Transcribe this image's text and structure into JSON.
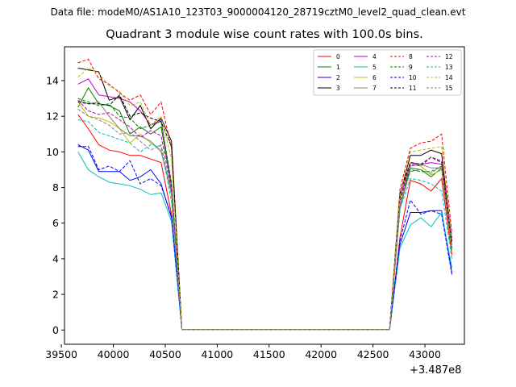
{
  "figure": {
    "suptitle": "Data file: modeM0/AS1A10_123T03_9000004120_28719cztM0_level2_quad_clean.evt"
  },
  "chart_data": {
    "type": "line",
    "title": "Quadrant 3 module wise count rates with 100.0s bins.",
    "xlabel": "",
    "ylabel": "",
    "x_offset_label": "+3.487e8",
    "xlim": [
      39530,
      43380
    ],
    "ylim": [
      -0.8,
      15.9
    ],
    "xticks": [
      39500,
      40000,
      40500,
      41000,
      41500,
      42000,
      42500,
      43000
    ],
    "yticks": [
      0,
      2,
      4,
      6,
      8,
      10,
      12,
      14
    ],
    "grid": false,
    "legend_position": "top-right",
    "legend_columns": 4,
    "x": [
      39660,
      39760,
      39860,
      39960,
      40060,
      40160,
      40260,
      40360,
      40460,
      40560,
      40660,
      40760,
      40860,
      40960,
      41060,
      41160,
      41260,
      41360,
      41460,
      41560,
      41660,
      41760,
      41860,
      41960,
      42060,
      42160,
      42260,
      42360,
      42460,
      42560,
      42660,
      42760,
      42860,
      42960,
      43060,
      43160,
      43260
    ],
    "series": [
      {
        "name": "0",
        "color": "#ff0000",
        "dash": "solid",
        "values": [
          12.1,
          11.3,
          10.4,
          10.1,
          10.0,
          9.8,
          9.8,
          9.6,
          9.4,
          6.5,
          0.02,
          0.02,
          0.02,
          0.02,
          0.02,
          0.02,
          0.02,
          0.02,
          0.02,
          0.02,
          0.02,
          0.02,
          0.02,
          0.02,
          0.02,
          0.02,
          0.02,
          0.02,
          0.02,
          0.02,
          0.02,
          5.2,
          8.4,
          8.2,
          7.8,
          8.5,
          4.2
        ]
      },
      {
        "name": "1",
        "color": "#008000",
        "dash": "solid",
        "values": [
          12.5,
          13.6,
          12.7,
          12.6,
          12.3,
          11.0,
          11.4,
          11.0,
          11.4,
          8.0,
          0.02,
          0.02,
          0.02,
          0.02,
          0.02,
          0.02,
          0.02,
          0.02,
          0.02,
          0.02,
          0.02,
          0.02,
          0.02,
          0.02,
          0.02,
          0.02,
          0.02,
          0.02,
          0.02,
          0.02,
          0.02,
          6.8,
          9.1,
          9.0,
          8.6,
          9.1,
          4.5
        ]
      },
      {
        "name": "2",
        "color": "#0000ff",
        "dash": "solid",
        "values": [
          10.4,
          10.1,
          8.9,
          8.9,
          8.9,
          8.4,
          8.6,
          9.0,
          8.2,
          6.3,
          0.02,
          0.02,
          0.02,
          0.02,
          0.02,
          0.02,
          0.02,
          0.02,
          0.02,
          0.02,
          0.02,
          0.02,
          0.02,
          0.02,
          0.02,
          0.02,
          0.02,
          0.02,
          0.02,
          0.02,
          0.02,
          4.8,
          6.6,
          6.6,
          6.7,
          6.7,
          3.2
        ]
      },
      {
        "name": "3",
        "color": "#000000",
        "dash": "solid",
        "values": [
          14.7,
          14.6,
          14.5,
          12.9,
          13.1,
          11.8,
          12.6,
          11.3,
          11.9,
          10.6,
          0.02,
          0.02,
          0.02,
          0.02,
          0.02,
          0.02,
          0.02,
          0.02,
          0.02,
          0.02,
          0.02,
          0.02,
          0.02,
          0.02,
          0.02,
          0.02,
          0.02,
          0.02,
          0.02,
          0.02,
          0.02,
          7.6,
          9.8,
          9.8,
          10.1,
          9.9,
          5.0
        ]
      },
      {
        "name": "4",
        "color": "#bf00bf",
        "dash": "solid",
        "values": [
          13.8,
          14.1,
          13.2,
          13.1,
          13.0,
          12.8,
          12.3,
          11.5,
          11.8,
          8.1,
          0.02,
          0.02,
          0.02,
          0.02,
          0.02,
          0.02,
          0.02,
          0.02,
          0.02,
          0.02,
          0.02,
          0.02,
          0.02,
          0.02,
          0.02,
          0.02,
          0.02,
          0.02,
          0.02,
          0.02,
          0.02,
          7.4,
          9.4,
          9.3,
          9.4,
          9.3,
          5.2
        ]
      },
      {
        "name": "5",
        "color": "#00bfbf",
        "dash": "solid",
        "values": [
          10.0,
          9.0,
          8.6,
          8.3,
          8.2,
          8.1,
          7.9,
          7.6,
          7.7,
          6.1,
          0.02,
          0.02,
          0.02,
          0.02,
          0.02,
          0.02,
          0.02,
          0.02,
          0.02,
          0.02,
          0.02,
          0.02,
          0.02,
          0.02,
          0.02,
          0.02,
          0.02,
          0.02,
          0.02,
          0.02,
          0.02,
          4.6,
          5.9,
          6.3,
          5.8,
          6.6,
          3.5
        ]
      },
      {
        "name": "6",
        "color": "#bfbf00",
        "dash": "solid",
        "values": [
          12.8,
          12.0,
          11.9,
          11.7,
          11.3,
          10.5,
          11.0,
          10.5,
          10.1,
          7.6,
          0.02,
          0.02,
          0.02,
          0.02,
          0.02,
          0.02,
          0.02,
          0.02,
          0.02,
          0.02,
          0.02,
          0.02,
          0.02,
          0.02,
          0.02,
          0.02,
          0.02,
          0.02,
          0.02,
          0.02,
          0.02,
          7.0,
          9.4,
          9.2,
          8.7,
          9.0,
          4.4
        ]
      },
      {
        "name": "7",
        "color": "#808080",
        "dash": "solid",
        "values": [
          12.9,
          12.7,
          12.8,
          12.0,
          11.3,
          10.9,
          10.9,
          10.6,
          10.0,
          7.8,
          0.02,
          0.02,
          0.02,
          0.02,
          0.02,
          0.02,
          0.02,
          0.02,
          0.02,
          0.02,
          0.02,
          0.02,
          0.02,
          0.02,
          0.02,
          0.02,
          0.02,
          0.02,
          0.02,
          0.02,
          0.02,
          6.9,
          9.2,
          9.3,
          9.1,
          9.1,
          4.6
        ]
      },
      {
        "name": "8",
        "color": "#ff0000",
        "dash": "dashed",
        "values": [
          15.0,
          15.2,
          14.1,
          13.8,
          13.3,
          12.9,
          13.2,
          12.1,
          12.8,
          10.2,
          0.02,
          0.02,
          0.02,
          0.02,
          0.02,
          0.02,
          0.02,
          0.02,
          0.02,
          0.02,
          0.02,
          0.02,
          0.02,
          0.02,
          0.02,
          0.02,
          0.02,
          0.02,
          0.02,
          0.02,
          0.02,
          7.9,
          10.2,
          10.5,
          10.6,
          11.0,
          5.4
        ]
      },
      {
        "name": "9",
        "color": "#008000",
        "dash": "dashed",
        "values": [
          13.0,
          12.8,
          12.6,
          12.7,
          12.0,
          11.9,
          11.3,
          11.5,
          11.7,
          8.3,
          0.02,
          0.02,
          0.02,
          0.02,
          0.02,
          0.02,
          0.02,
          0.02,
          0.02,
          0.02,
          0.02,
          0.02,
          0.02,
          0.02,
          0.02,
          0.02,
          0.02,
          0.02,
          0.02,
          0.02,
          0.02,
          7.4,
          9.0,
          8.9,
          8.9,
          9.2,
          4.6
        ]
      },
      {
        "name": "10",
        "color": "#0000ff",
        "dash": "dashed",
        "values": [
          10.3,
          10.3,
          9.0,
          9.2,
          8.9,
          9.5,
          8.2,
          8.5,
          8.1,
          6.4,
          0.02,
          0.02,
          0.02,
          0.02,
          0.02,
          0.02,
          0.02,
          0.02,
          0.02,
          0.02,
          0.02,
          0.02,
          0.02,
          0.02,
          0.02,
          0.02,
          0.02,
          0.02,
          0.02,
          0.02,
          0.02,
          5.0,
          7.3,
          6.5,
          6.7,
          6.5,
          3.1
        ]
      },
      {
        "name": "11",
        "color": "#000000",
        "dash": "dashed",
        "values": [
          12.8,
          12.7,
          12.7,
          12.6,
          13.2,
          12.0,
          12.2,
          11.9,
          11.7,
          10.3,
          0.02,
          0.02,
          0.02,
          0.02,
          0.02,
          0.02,
          0.02,
          0.02,
          0.02,
          0.02,
          0.02,
          0.02,
          0.02,
          0.02,
          0.02,
          0.02,
          0.02,
          0.02,
          0.02,
          0.02,
          0.02,
          7.7,
          9.4,
          9.3,
          9.7,
          9.4,
          4.8
        ]
      },
      {
        "name": "12",
        "color": "#bf00bf",
        "dash": "dashed",
        "values": [
          12.9,
          12.3,
          12.1,
          12.2,
          11.8,
          11.4,
          10.8,
          11.2,
          10.9,
          7.8,
          0.02,
          0.02,
          0.02,
          0.02,
          0.02,
          0.02,
          0.02,
          0.02,
          0.02,
          0.02,
          0.02,
          0.02,
          0.02,
          0.02,
          0.02,
          0.02,
          0.02,
          0.02,
          0.02,
          0.02,
          0.02,
          7.2,
          9.3,
          9.2,
          9.7,
          9.5,
          5.0
        ]
      },
      {
        "name": "13",
        "color": "#00bfbf",
        "dash": "dashed",
        "values": [
          11.8,
          11.7,
          11.1,
          10.9,
          10.7,
          10.5,
          10.0,
          10.4,
          10.3,
          7.2,
          0.02,
          0.02,
          0.02,
          0.02,
          0.02,
          0.02,
          0.02,
          0.02,
          0.02,
          0.02,
          0.02,
          0.02,
          0.02,
          0.02,
          0.02,
          0.02,
          0.02,
          0.02,
          0.02,
          0.02,
          0.02,
          6.8,
          8.5,
          8.4,
          8.2,
          7.8,
          4.0
        ]
      },
      {
        "name": "14",
        "color": "#bfbf00",
        "dash": "dashed",
        "values": [
          14.2,
          14.7,
          14.4,
          13.7,
          13.4,
          12.6,
          12.8,
          11.5,
          12.0,
          9.6,
          0.02,
          0.02,
          0.02,
          0.02,
          0.02,
          0.02,
          0.02,
          0.02,
          0.02,
          0.02,
          0.02,
          0.02,
          0.02,
          0.02,
          0.02,
          0.02,
          0.02,
          0.02,
          0.02,
          0.02,
          0.02,
          7.6,
          10.0,
          10.1,
          10.2,
          10.3,
          5.1
        ]
      },
      {
        "name": "15",
        "color": "#808080",
        "dash": "dashed",
        "values": [
          12.4,
          12.0,
          11.8,
          11.5,
          11.0,
          11.1,
          10.6,
          10.1,
          10.4,
          7.6,
          0.02,
          0.02,
          0.02,
          0.02,
          0.02,
          0.02,
          0.02,
          0.02,
          0.02,
          0.02,
          0.02,
          0.02,
          0.02,
          0.02,
          0.02,
          0.02,
          0.02,
          0.02,
          0.02,
          0.02,
          0.02,
          6.9,
          8.9,
          9.0,
          8.8,
          9.2,
          4.5
        ]
      }
    ]
  }
}
